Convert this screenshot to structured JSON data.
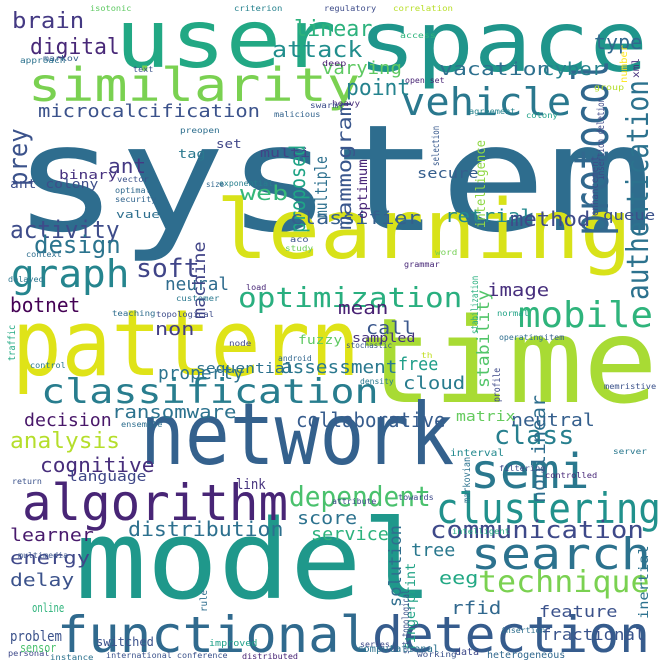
{
  "words": [
    {
      "text": "system",
      "color": "#2e6d8e"
    },
    {
      "text": "time",
      "color": "#a8db34"
    },
    {
      "text": "model",
      "color": "#1f988b"
    },
    {
      "text": "network",
      "color": "#34618d"
    },
    {
      "text": "pattern",
      "color": "#dfe318"
    },
    {
      "text": "space",
      "color": "#1f958b"
    },
    {
      "text": "user",
      "color": "#22a884"
    },
    {
      "text": "learning",
      "color": "#d8e219"
    },
    {
      "text": "algorithm",
      "color": "#482576"
    },
    {
      "text": "similarity",
      "color": "#7ad151"
    },
    {
      "text": "functional",
      "color": "#306a8e"
    },
    {
      "text": "detection",
      "color": "#365c8d"
    },
    {
      "text": "classification",
      "color": "#287d8e"
    },
    {
      "text": "search",
      "color": "#2c728e"
    },
    {
      "text": "clustering",
      "color": "#21918c"
    },
    {
      "text": "semi",
      "color": "#2a788e"
    },
    {
      "text": "graph",
      "color": "#25858e"
    },
    {
      "text": "vehicle",
      "color": "#2a788e"
    },
    {
      "text": "protocol",
      "color": "#31688e"
    },
    {
      "text": "mobile",
      "color": "#2fb47c"
    },
    {
      "text": "optimization",
      "color": "#29af7f"
    },
    {
      "text": "authentication",
      "color": "#2c728e"
    },
    {
      "text": "communication",
      "color": "#3e4989"
    },
    {
      "text": "technique",
      "color": "#7ad151"
    },
    {
      "text": "dependent",
      "color": "#4ac16d"
    },
    {
      "text": "microcalcification",
      "color": "#3b528b"
    },
    {
      "text": "activity",
      "color": "#3e4c8a"
    },
    {
      "text": "brain",
      "color": "#443983"
    },
    {
      "text": "class",
      "color": "#277f8e"
    },
    {
      "text": "analysis",
      "color": "#b5de2b"
    },
    {
      "text": "distribution",
      "color": "#2d708e"
    },
    {
      "text": "collaborative",
      "color": "#365c8d"
    },
    {
      "text": "design",
      "color": "#2b748e"
    },
    {
      "text": "soft",
      "color": "#404588"
    },
    {
      "text": "cognitive",
      "color": "#472d7b"
    },
    {
      "text": "ransomware",
      "color": "#2c728e"
    },
    {
      "text": "decision",
      "color": "#481769"
    },
    {
      "text": "prey",
      "color": "#3b528b"
    },
    {
      "text": "digital",
      "color": "#482878"
    },
    {
      "text": "attack",
      "color": "#218e8d"
    },
    {
      "text": "point",
      "color": "#25838e"
    },
    {
      "text": "linear",
      "color": "#2db27d"
    },
    {
      "text": "varying",
      "color": "#5ec962"
    },
    {
      "text": "vacation",
      "color": "#2d708e"
    },
    {
      "text": "cyber",
      "color": "#26828e"
    },
    {
      "text": "type",
      "color": "#31688e"
    },
    {
      "text": "web",
      "color": "#35b779"
    },
    {
      "text": "ant",
      "color": "#443983"
    },
    {
      "text": "proposed",
      "color": "#20a486"
    },
    {
      "text": "mammogram",
      "color": "#39568c"
    },
    {
      "text": "retrial",
      "color": "#23898e"
    },
    {
      "text": "classifier",
      "color": "#355f8d"
    },
    {
      "text": "method",
      "color": "#3e4a89"
    },
    {
      "text": "multiple",
      "color": "#2d708e"
    },
    {
      "text": "image",
      "color": "#472f7d"
    },
    {
      "text": "mean",
      "color": "#482173"
    },
    {
      "text": "neural",
      "color": "#2f6c8e"
    },
    {
      "text": "property",
      "color": "#2c738e"
    },
    {
      "text": "machine",
      "color": "#414487"
    },
    {
      "text": "botnet",
      "color": "#440154"
    },
    {
      "text": "call",
      "color": "#39568c"
    },
    {
      "text": "non",
      "color": "#433e85"
    },
    {
      "text": "assessment",
      "color": "#2a788e"
    },
    {
      "text": "free",
      "color": "#1f9e89"
    },
    {
      "text": "cloud",
      "color": "#287c8e"
    },
    {
      "text": "stability",
      "color": "#52c569"
    },
    {
      "text": "sequential",
      "color": "#2c728e"
    },
    {
      "text": "neutral",
      "color": "#355f8d"
    },
    {
      "text": "matrix",
      "color": "#65cb5e"
    },
    {
      "text": "nonlinear",
      "color": "#2e6e8e"
    },
    {
      "text": "language",
      "color": "#3f4788"
    },
    {
      "text": "link",
      "color": "#46337e"
    },
    {
      "text": "score",
      "color": "#2c728e"
    },
    {
      "text": "service",
      "color": "#2db27d"
    },
    {
      "text": "learner",
      "color": "#481a6c"
    },
    {
      "text": "energy",
      "color": "#3f4889"
    },
    {
      "text": "delay",
      "color": "#3b528b"
    },
    {
      "text": "tree",
      "color": "#2a788e"
    },
    {
      "text": "solution",
      "color": "#2e6e8e"
    },
    {
      "text": "eeg",
      "color": "#22a884"
    },
    {
      "text": "rfid",
      "color": "#31688e"
    },
    {
      "text": "feature",
      "color": "#3b528b"
    },
    {
      "text": "fingerprint",
      "color": "#20a386"
    },
    {
      "text": "inertial",
      "color": "#2c728e"
    },
    {
      "text": "fractional",
      "color": "#3a548c"
    },
    {
      "text": "intelligence",
      "color": "#8fd744"
    },
    {
      "text": "secure",
      "color": "#355e8d"
    },
    {
      "text": "optimum",
      "color": "#482677"
    },
    {
      "text": "queue",
      "color": "#3b528b"
    },
    {
      "text": "multi",
      "color": "#414487"
    },
    {
      "text": "tag",
      "color": "#2a788e"
    },
    {
      "text": "set",
      "color": "#404688"
    },
    {
      "text": "binary",
      "color": "#46307e"
    },
    {
      "text": "ant colony",
      "color": "#3d4e8a"
    },
    {
      "text": "value",
      "color": "#2e6f8e"
    },
    {
      "text": "fuzzy",
      "color": "#5ec962"
    },
    {
      "text": "sampled",
      "color": "#46327e"
    },
    {
      "text": "interval",
      "color": "#23898e"
    },
    {
      "text": "isotonic",
      "color": "#5ec962"
    },
    {
      "text": "criterion",
      "color": "#26828e"
    },
    {
      "text": "regulatory",
      "color": "#3e4c8a"
    },
    {
      "text": "correlation",
      "color": "#b8de29"
    },
    {
      "text": "access",
      "color": "#2fb47c"
    },
    {
      "text": "markov",
      "color": "#355f8d"
    },
    {
      "text": "approach",
      "color": "#2c728e"
    },
    {
      "text": "deep",
      "color": "#481f70"
    },
    {
      "text": "text",
      "color": "#3b528b"
    },
    {
      "text": "open set",
      "color": "#482475"
    },
    {
      "text": "xml",
      "color": "#46327e"
    },
    {
      "text": "number",
      "color": "#fde725"
    },
    {
      "text": "group",
      "color": "#b5de2b"
    },
    {
      "text": "heavy",
      "color": "#472c7a"
    },
    {
      "text": "swarm",
      "color": "#3d4d8a"
    },
    {
      "text": "malicious",
      "color": "#33638d"
    },
    {
      "text": "agreement",
      "color": "#25848e"
    },
    {
      "text": "colony",
      "color": "#1fa188"
    },
    {
      "text": "insertion deletion",
      "color": "#3e4989"
    },
    {
      "text": "selection",
      "color": "#38598c"
    },
    {
      "text": "preopen",
      "color": "#2e6f8e"
    },
    {
      "text": "vector",
      "color": "#3b528b"
    },
    {
      "text": "optimal",
      "color": "#30698e"
    },
    {
      "text": "security",
      "color": "#32658e"
    },
    {
      "text": "exponential",
      "color": "#277f8e"
    },
    {
      "text": "size",
      "color": "#31688e"
    },
    {
      "text": "enhancement",
      "color": "#3e4a89"
    },
    {
      "text": "aco",
      "color": "#3b528b"
    },
    {
      "text": "study",
      "color": "#6ccd5a"
    },
    {
      "text": "context",
      "color": "#2e6e8e"
    },
    {
      "text": "word",
      "color": "#75d054"
    },
    {
      "text": "grammar",
      "color": "#482878"
    },
    {
      "text": "customer",
      "color": "#2a788e"
    },
    {
      "text": "load",
      "color": "#482878"
    },
    {
      "text": "delayed",
      "color": "#2a768e"
    },
    {
      "text": "teaching",
      "color": "#2e6d8e"
    },
    {
      "text": "topological",
      "color": "#3e4c8a"
    },
    {
      "text": "stabilization",
      "color": "#2ab07f"
    },
    {
      "text": "normal",
      "color": "#20a386"
    },
    {
      "text": "traffic",
      "color": "#23a983"
    },
    {
      "text": "stochastic",
      "color": "#38588c"
    },
    {
      "text": "node",
      "color": "#404588"
    },
    {
      "text": "operating",
      "color": "#2e6e8e"
    },
    {
      "text": "item",
      "color": "#355f8d"
    },
    {
      "text": "control",
      "color": "#2a788e"
    },
    {
      "text": "android",
      "color": "#31678e"
    },
    {
      "text": "th",
      "color": "#c2df23"
    },
    {
      "text": "density",
      "color": "#2a788e"
    },
    {
      "text": "profile",
      "color": "#3e4a89"
    },
    {
      "text": "memristive",
      "color": "#3b528b"
    },
    {
      "text": "ensemble",
      "color": "#2e6e8e"
    },
    {
      "text": "server",
      "color": "#2a788e"
    },
    {
      "text": "markovian",
      "color": "#2c738e"
    },
    {
      "text": "return",
      "color": "#3b528b"
    },
    {
      "text": "filtering",
      "color": "#3e4c8a"
    },
    {
      "text": "controlled",
      "color": "#482878"
    },
    {
      "text": "attribute",
      "color": "#3e4989"
    },
    {
      "text": "towards",
      "color": "#3e4a89"
    },
    {
      "text": "intelligent",
      "color": "#25ab82"
    },
    {
      "text": "rule",
      "color": "#2e6e8e"
    },
    {
      "text": "set topological",
      "color": "#3b528b"
    },
    {
      "text": "multimedia",
      "color": "#3a548c"
    },
    {
      "text": "online",
      "color": "#2fb47c"
    },
    {
      "text": "problem",
      "color": "#3b528b"
    },
    {
      "text": "switched",
      "color": "#3b528b"
    },
    {
      "text": "improved",
      "color": "#1fa088"
    },
    {
      "text": "series",
      "color": "#3e4a89"
    },
    {
      "text": "insertion",
      "color": "#2e6f8e"
    },
    {
      "text": "personal",
      "color": "#3e4989"
    },
    {
      "text": "sensor",
      "color": "#4ac16d"
    },
    {
      "text": "computational",
      "color": "#2c728e"
    },
    {
      "text": "working",
      "color": "#3b528b"
    },
    {
      "text": "heterogeneous",
      "color": "#31688e"
    },
    {
      "text": "data",
      "color": "#3e4989"
    },
    {
      "text": "instance",
      "color": "#2c728e"
    },
    {
      "text": "international conference",
      "color": "#3b528b"
    },
    {
      "text": "distributed",
      "color": "#482475"
    }
  ]
}
